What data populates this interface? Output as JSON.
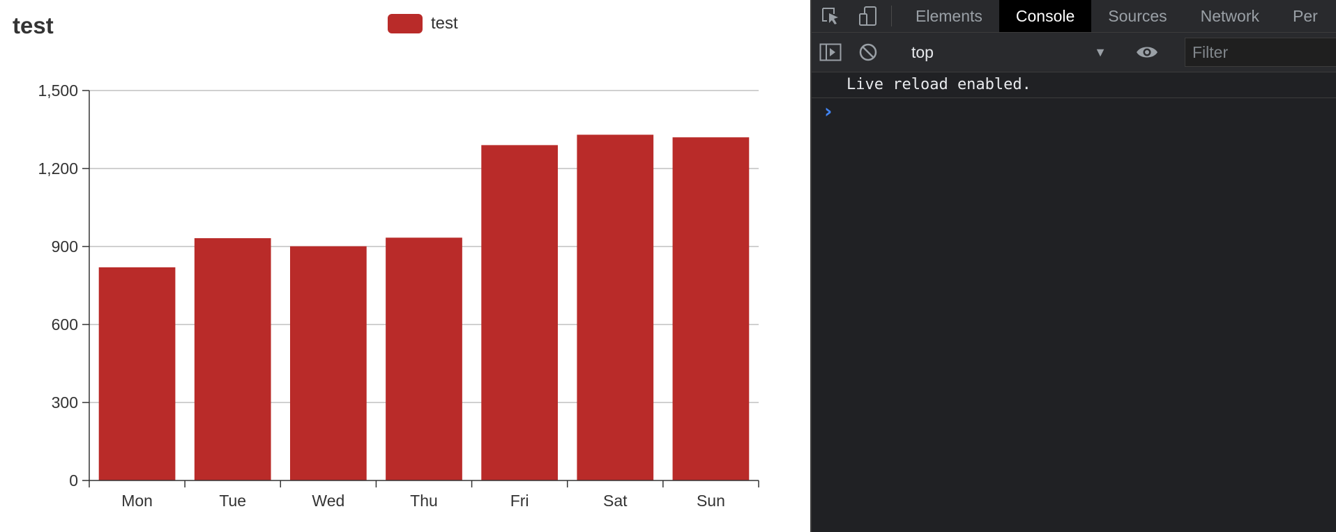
{
  "chart": {
    "title": "test",
    "legend_label": "test"
  },
  "chart_data": {
    "type": "bar",
    "title": "test",
    "categories": [
      "Mon",
      "Tue",
      "Wed",
      "Thu",
      "Fri",
      "Sat",
      "Sun"
    ],
    "series": [
      {
        "name": "test",
        "values": [
          820,
          932,
          901,
          934,
          1290,
          1330,
          1320
        ],
        "color": "#b92b29"
      }
    ],
    "ylim": [
      0,
      1500
    ],
    "yticks": [
      0,
      300,
      600,
      900,
      1200,
      1500
    ],
    "ytick_labels": [
      "0",
      "300",
      "600",
      "900",
      "1,200",
      "1,500"
    ],
    "grid": true,
    "legend_position": "top-center"
  },
  "devtools": {
    "tabs": [
      "Elements",
      "Console",
      "Sources",
      "Network",
      "Per"
    ],
    "active_tab": "Console",
    "context": "top",
    "filter_placeholder": "Filter",
    "log_line": "Live reload enabled.",
    "prompt_symbol": "›"
  },
  "colors": {
    "bar": "#b92b29",
    "devtools_bg": "#202124",
    "prompt": "#4285f4"
  }
}
